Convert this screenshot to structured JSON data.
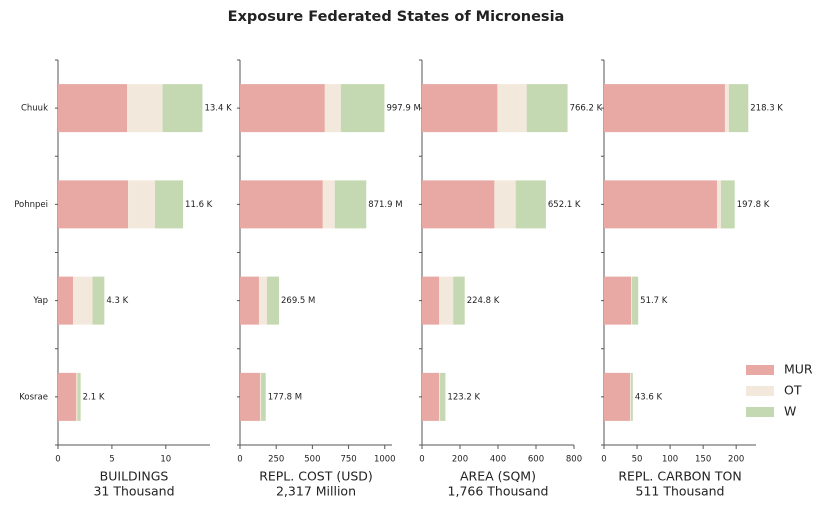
{
  "title": "Exposure Federated States of Micronesia",
  "legend": "lower right",
  "chart_data": [
    {
      "type": "bar",
      "orientation": "horizontal",
      "xlabel": [
        "BUILDINGS",
        "31 Thousand"
      ],
      "categories": [
        "Chuuk",
        "Pohnpei",
        "Yap",
        "Kosrae"
      ],
      "series": [
        {
          "name": "MUR",
          "color": "#e8a8a3",
          "values": [
            6.4,
            6.5,
            1.4,
            1.7
          ]
        },
        {
          "name": "OT",
          "color": "#f3e8dc",
          "values": [
            3.3,
            2.5,
            1.8,
            0.1
          ]
        },
        {
          "name": "W",
          "color": "#c4d9b1",
          "values": [
            3.7,
            2.6,
            1.1,
            0.3
          ]
        }
      ],
      "totals": [
        13.4,
        11.6,
        4.3,
        2.1
      ],
      "total_labels": [
        "13.4 K",
        "11.6 K",
        "4.3 K",
        "2.1 K"
      ],
      "xlim": [
        0,
        14.1
      ],
      "xticks": [
        0,
        5,
        10
      ]
    },
    {
      "type": "bar",
      "orientation": "horizontal",
      "xlabel": [
        "REPL. COST (USD)",
        "2,317 Million"
      ],
      "categories": [
        "Chuuk",
        "Pohnpei",
        "Yap",
        "Kosrae"
      ],
      "series": [
        {
          "name": "MUR",
          "color": "#e8a8a3",
          "values": [
            586,
            572,
            131,
            138
          ]
        },
        {
          "name": "OT",
          "color": "#f3e8dc",
          "values": [
            111,
            83,
            55,
            7
          ]
        },
        {
          "name": "W",
          "color": "#c4d9b1",
          "values": [
            300.9,
            216.9,
            83.5,
            32.8
          ]
        }
      ],
      "totals": [
        997.9,
        871.9,
        269.5,
        177.8
      ],
      "total_labels": [
        "997.9 M",
        "871.9 M",
        "269.5 M",
        "177.8 M"
      ],
      "xlim": [
        0,
        1050
      ],
      "xticks": [
        0,
        250,
        500,
        750,
        1000
      ]
    },
    {
      "type": "bar",
      "orientation": "horizontal",
      "xlabel": [
        "AREA (SQM)",
        "1,766 Thousand"
      ],
      "categories": [
        "Chuuk",
        "Pohnpei",
        "Yap",
        "Kosrae"
      ],
      "series": [
        {
          "name": "MUR",
          "color": "#e8a8a3",
          "values": [
            397,
            381,
            90,
            90
          ]
        },
        {
          "name": "OT",
          "color": "#f3e8dc",
          "values": [
            154,
            112,
            74,
            5
          ]
        },
        {
          "name": "W",
          "color": "#c4d9b1",
          "values": [
            215.2,
            159.1,
            60.8,
            28.2
          ]
        }
      ],
      "totals": [
        766.2,
        652.1,
        224.8,
        123.2
      ],
      "total_labels": [
        "766.2 K",
        "652.1 K",
        "224.8 K",
        "123.2 K"
      ],
      "xlim": [
        0,
        800
      ],
      "xticks": [
        0,
        200,
        400,
        600,
        800
      ]
    },
    {
      "type": "bar",
      "orientation": "horizontal",
      "xlabel": [
        "REPL. CARBON TON",
        "511 Thousand"
      ],
      "categories": [
        "Chuuk",
        "Pohnpei",
        "Yap",
        "Kosrae"
      ],
      "series": [
        {
          "name": "MUR",
          "color": "#e8a8a3",
          "values": [
            183,
            171,
            41,
            39.4
          ]
        },
        {
          "name": "OT",
          "color": "#f3e8dc",
          "values": [
            6,
            6,
            1.4,
            1.5
          ]
        },
        {
          "name": "W",
          "color": "#c4d9b1",
          "values": [
            29.3,
            20.8,
            9.3,
            2.7
          ]
        }
      ],
      "totals": [
        218.3,
        197.8,
        51.7,
        43.6
      ],
      "total_labels": [
        "218.3 K",
        "197.8 K",
        "51.7 K",
        "43.6 K"
      ],
      "xlim": [
        0,
        230
      ],
      "xticks": [
        0,
        50,
        100,
        150,
        200
      ]
    }
  ]
}
